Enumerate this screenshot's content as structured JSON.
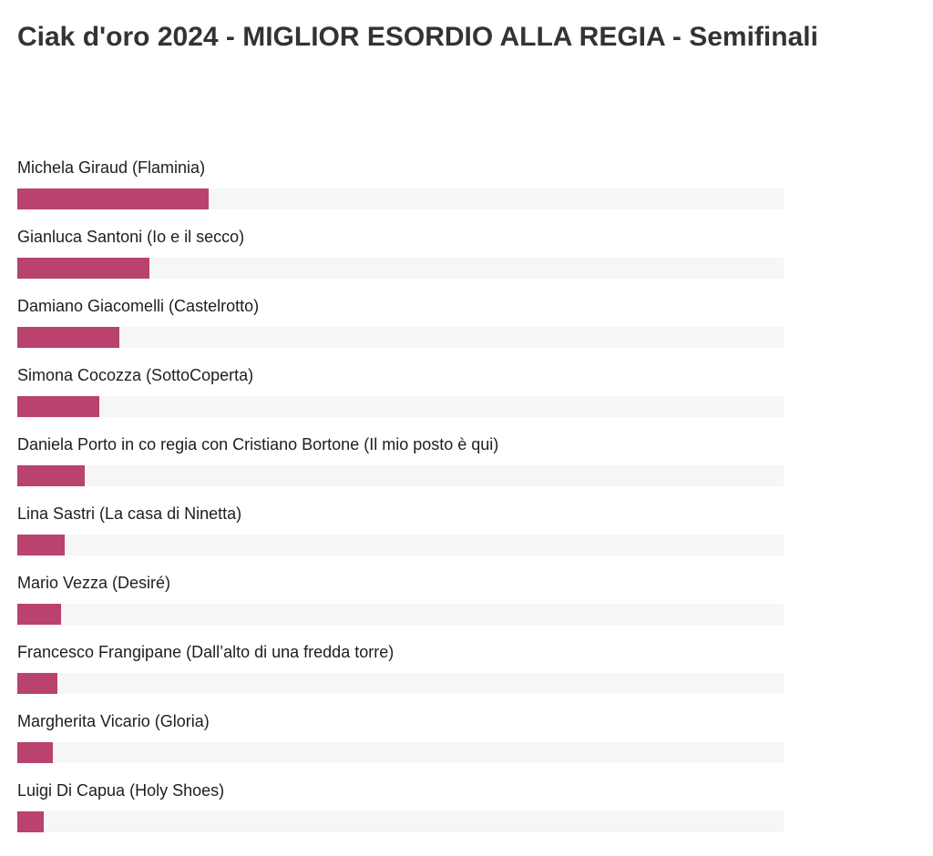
{
  "page": {
    "title": "Ciak d'oro 2024 - MIGLIOR ESORDIO ALLA REGIA - Semifinali"
  },
  "colors": {
    "bar_fill": "#b9426e",
    "bar_track": "#f6f6f6"
  },
  "chart_data": {
    "type": "bar",
    "orientation": "horizontal",
    "title": "Ciak d'oro 2024 - MIGLIOR ESORDIO ALLA REGIA - Semifinali",
    "categories": [
      "Michela Giraud (Flaminia)",
      "Gianluca Santoni (Io e il secco)",
      "Damiano Giacomelli (Castelrotto)",
      "Simona Cocozza (SottoCoperta)",
      "Daniela Porto in co regia con Cristiano Bortone (Il mio posto è qui)",
      "Lina Sastri (La casa di Ninetta)",
      "Mario Vezza (Desiré)",
      "Francesco Frangipane (Dall’alto di una fredda torre)",
      "Margherita Vicario (Gloria)",
      "Luigi Di Capua (Holy Shoes)"
    ],
    "values": [
      25,
      17.3,
      13.3,
      10.7,
      8.8,
      6.2,
      5.7,
      5.2,
      4.6,
      3.5
    ],
    "value_unit": "percent",
    "xlim": [
      0,
      100
    ],
    "grid": false,
    "legend": "none"
  }
}
